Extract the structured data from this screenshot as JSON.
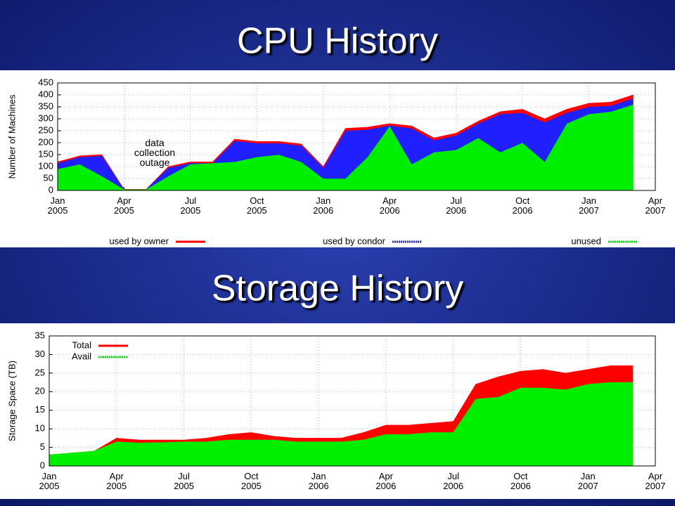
{
  "chart_data": [
    {
      "type": "stacked_area",
      "title": "CPU History",
      "ylabel": "Number of Machines",
      "annotation": "data collection outage",
      "x": [
        "2005-01",
        "2005-02",
        "2005-03",
        "2005-04",
        "2005-05",
        "2005-06",
        "2005-07",
        "2005-08",
        "2005-09",
        "2005-10",
        "2005-11",
        "2005-12",
        "2006-01",
        "2006-02",
        "2006-03",
        "2006-04",
        "2006-05",
        "2006-06",
        "2006-07",
        "2006-08",
        "2006-09",
        "2006-10",
        "2006-11",
        "2006-12",
        "2007-01",
        "2007-02",
        "2007-03"
      ],
      "series": [
        {
          "name": "used by owner",
          "color": "#ff0000",
          "values": [
            5,
            5,
            5,
            0,
            0,
            5,
            5,
            5,
            7,
            7,
            7,
            7,
            5,
            10,
            10,
            8,
            10,
            10,
            10,
            10,
            10,
            15,
            15,
            15,
            15,
            15,
            15
          ]
        },
        {
          "name": "used by condor",
          "color": "#2020ff",
          "values": [
            25,
            30,
            85,
            0,
            0,
            35,
            5,
            0,
            88,
            58,
            48,
            68,
            45,
            200,
            115,
            2,
            150,
            50,
            60,
            60,
            160,
            125,
            165,
            45,
            30,
            25,
            25
          ]
        },
        {
          "name": "unused",
          "color": "#00ee00",
          "values": [
            90,
            110,
            60,
            5,
            5,
            60,
            110,
            115,
            120,
            140,
            150,
            120,
            50,
            50,
            140,
            270,
            110,
            160,
            170,
            220,
            160,
            200,
            120,
            280,
            320,
            330,
            360
          ]
        }
      ],
      "xlim": [
        "2005-01",
        "2007-04"
      ],
      "xticks": [
        {
          "value": "2005-01",
          "label": "Jan 2005"
        },
        {
          "value": "2005-04",
          "label": "Apr 2005"
        },
        {
          "value": "2005-07",
          "label": "Jul 2005"
        },
        {
          "value": "2005-10",
          "label": "Oct 2005"
        },
        {
          "value": "2006-01",
          "label": "Jan 2006"
        },
        {
          "value": "2006-04",
          "label": "Apr 2006"
        },
        {
          "value": "2006-07",
          "label": "Jul 2006"
        },
        {
          "value": "2006-10",
          "label": "Oct 2006"
        },
        {
          "value": "2007-01",
          "label": "Jan 2007"
        },
        {
          "value": "2007-04",
          "label": "Apr 2007"
        }
      ],
      "ylim": [
        0,
        450
      ],
      "yticks": [
        0,
        50,
        100,
        150,
        200,
        250,
        300,
        350,
        400,
        450
      ],
      "grid": true,
      "legend": "bottom"
    },
    {
      "type": "area",
      "title": "Storage History",
      "ylabel": "Storage Space (TB)",
      "x": [
        "2005-01",
        "2005-02",
        "2005-03",
        "2005-04",
        "2005-05",
        "2005-06",
        "2005-07",
        "2005-08",
        "2005-09",
        "2005-10",
        "2005-11",
        "2005-12",
        "2006-01",
        "2006-02",
        "2006-03",
        "2006-04",
        "2006-05",
        "2006-06",
        "2006-07",
        "2006-08",
        "2006-09",
        "2006-10",
        "2006-11",
        "2006-12",
        "2007-01",
        "2007-02",
        "2007-03"
      ],
      "series": [
        {
          "name": "Total",
          "color": "#ff0000",
          "values": [
            3,
            3.5,
            4,
            7.5,
            7,
            7,
            7,
            7.5,
            8.5,
            9,
            8,
            7.5,
            7.5,
            7.5,
            9,
            11,
            11,
            11.5,
            12,
            22,
            24,
            25.5,
            26,
            25,
            26,
            27,
            27
          ]
        },
        {
          "name": "Avail",
          "color": "#00ee00",
          "values": [
            3,
            3.5,
            4,
            6.5,
            6.2,
            6.3,
            6.5,
            6.5,
            7,
            7,
            7,
            6.5,
            6.5,
            6.5,
            7,
            8.5,
            8.5,
            9,
            9,
            18,
            18.5,
            21,
            21,
            20.5,
            22,
            22.5,
            22.5
          ]
        }
      ],
      "xlim": [
        "2005-01",
        "2007-04"
      ],
      "xticks": [
        {
          "value": "2005-01",
          "label": "Jan 2005"
        },
        {
          "value": "2005-04",
          "label": "Apr 2005"
        },
        {
          "value": "2005-07",
          "label": "Jul 2005"
        },
        {
          "value": "2005-10",
          "label": "Oct 2005"
        },
        {
          "value": "2006-01",
          "label": "Jan 2006"
        },
        {
          "value": "2006-04",
          "label": "Apr 2006"
        },
        {
          "value": "2006-07",
          "label": "Jul 2006"
        },
        {
          "value": "2006-10",
          "label": "Oct 2006"
        },
        {
          "value": "2007-01",
          "label": "Jan 2007"
        },
        {
          "value": "2007-04",
          "label": "Apr 2007"
        }
      ],
      "ylim": [
        0,
        35
      ],
      "yticks": [
        0,
        5,
        10,
        15,
        20,
        25,
        30,
        35
      ],
      "grid": true,
      "legend": "upper left"
    }
  ]
}
